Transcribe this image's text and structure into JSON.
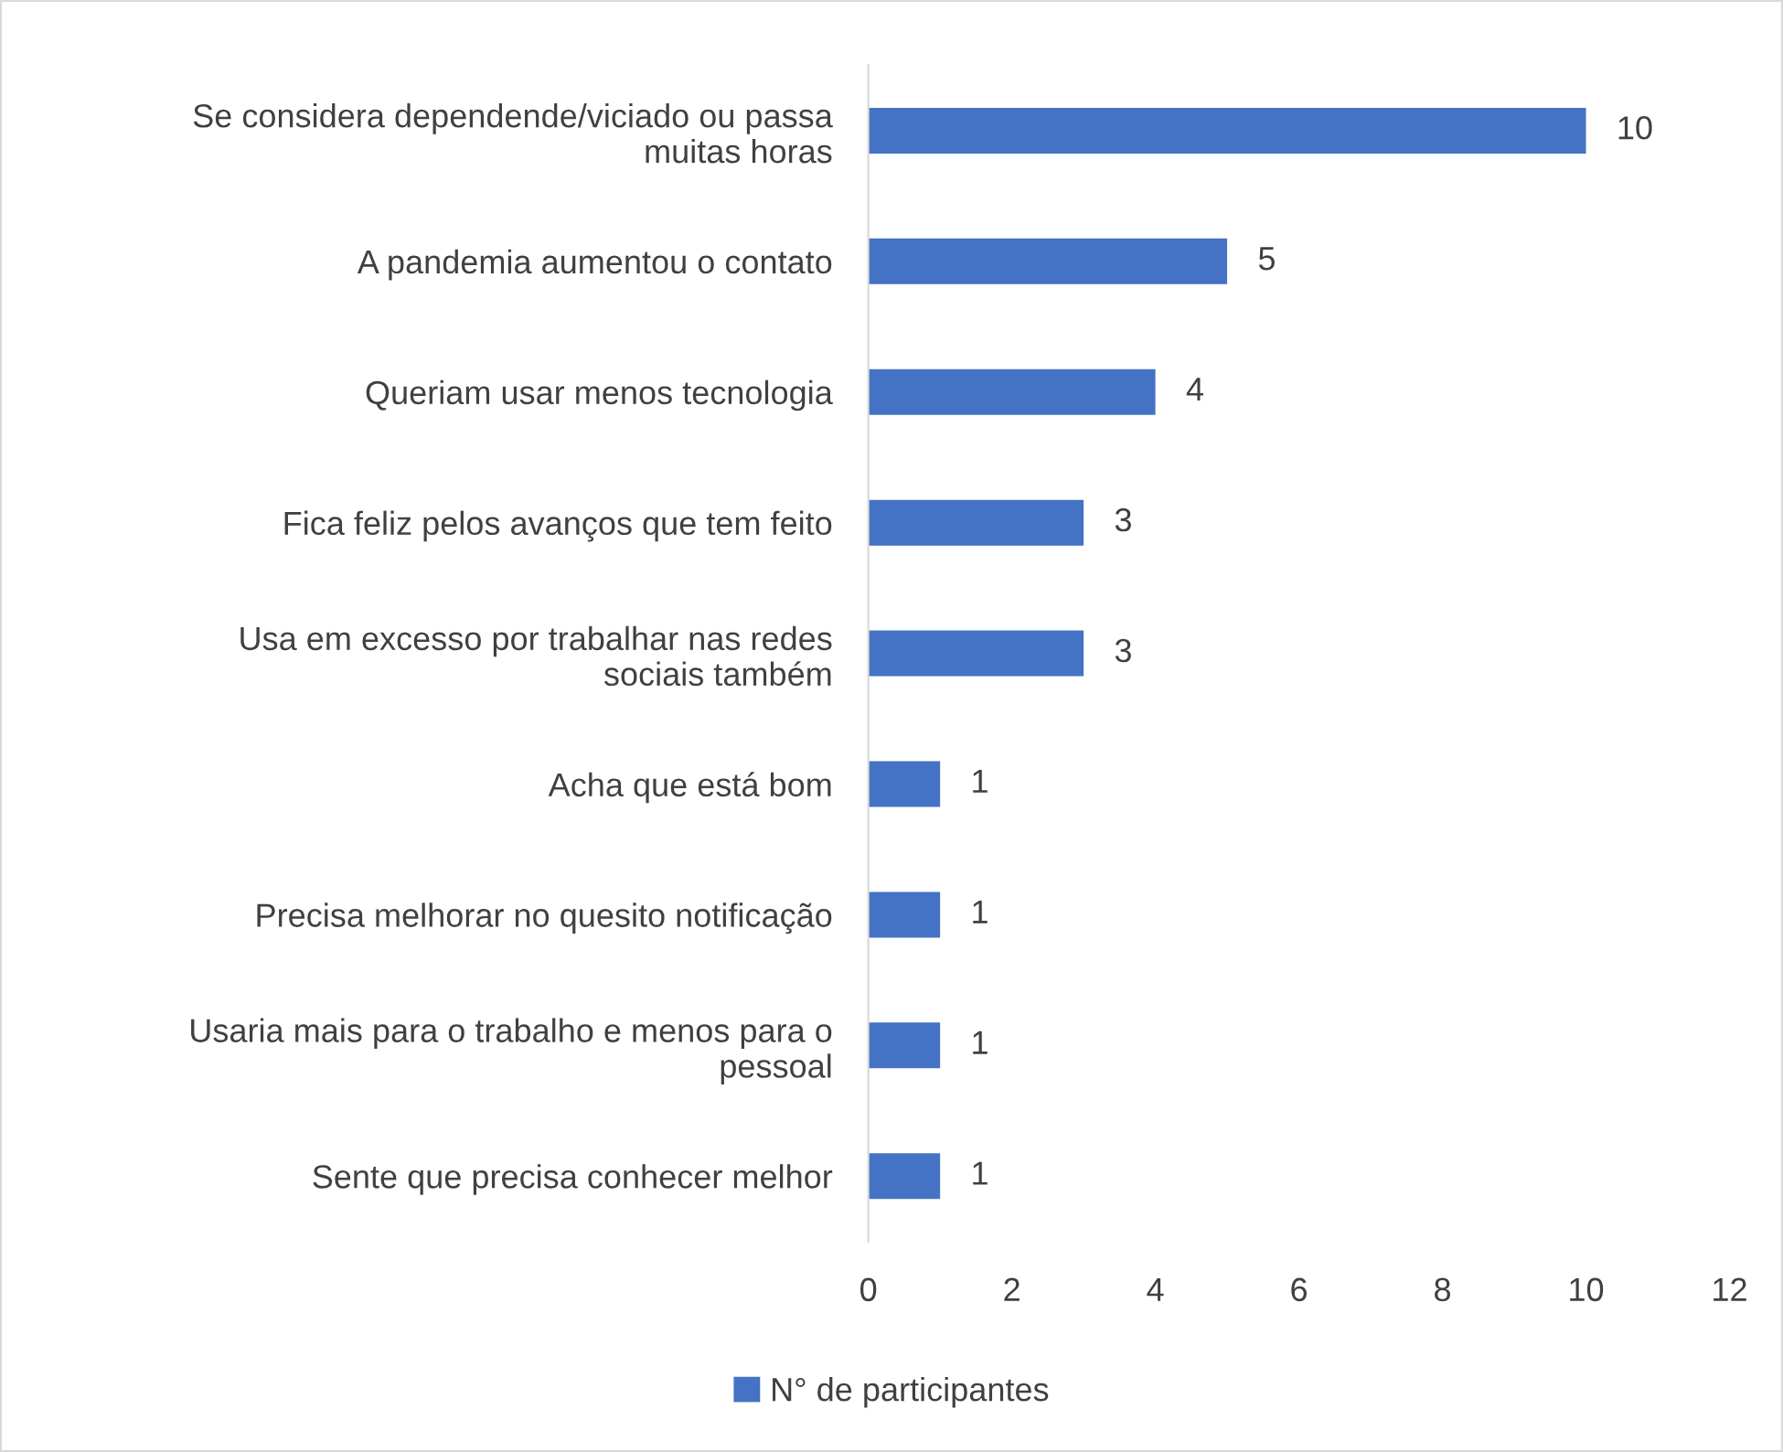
{
  "chart_data": {
    "type": "bar",
    "orientation": "horizontal",
    "categories": [
      "Se considera dependende/viciado ou passa\nmuitas horas",
      "A pandemia aumentou o contato",
      "Queriam usar menos tecnologia",
      "Fica feliz pelos avanços que tem feito",
      "Usa em excesso por trabalhar nas redes\nsociais também",
      "Acha que está bom",
      "Precisa melhorar no quesito notificação",
      "Usaria mais para o trabalho e menos para o\npessoal",
      "Sente que precisa conhecer melhor"
    ],
    "series": [
      {
        "name": "N° de participantes",
        "color": "#4472c4",
        "values": [
          10,
          5,
          4,
          3,
          3,
          1,
          1,
          1,
          1
        ]
      }
    ],
    "xlim": [
      0,
      12
    ],
    "xticks": [
      0,
      2,
      4,
      6,
      8,
      10,
      12
    ],
    "data_labels": true,
    "grid": false,
    "legend": "bottom"
  }
}
